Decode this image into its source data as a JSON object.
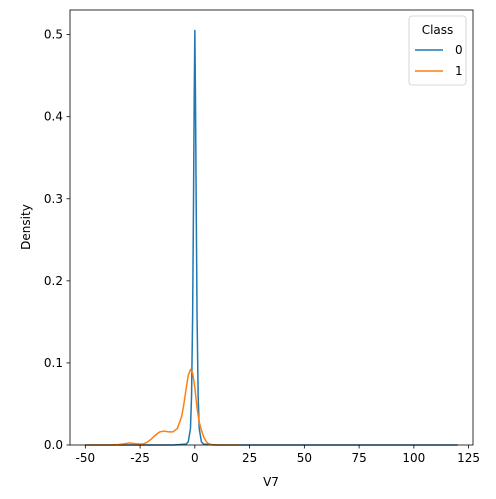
{
  "chart_data": {
    "type": "line",
    "xlabel": "V7",
    "ylabel": "Density",
    "xlim": [
      -57,
      127
    ],
    "ylim": [
      0,
      0.53
    ],
    "xticks": [
      -50,
      -25,
      0,
      25,
      50,
      75,
      100,
      125
    ],
    "yticks": [
      0.0,
      0.1,
      0.2,
      0.3,
      0.4,
      0.5
    ],
    "grid": false,
    "legend": {
      "title": "Class",
      "placement": "top-right"
    },
    "series": [
      {
        "name": "0",
        "color": "#1f77b4",
        "x": [
          -50,
          -10,
          -4,
          -3,
          -2,
          -1.5,
          -1,
          -0.6,
          -0.3,
          0,
          0.3,
          0.6,
          1,
          1.5,
          2,
          3,
          4,
          10,
          50,
          120
        ],
        "y": [
          0,
          0,
          0.001,
          0.004,
          0.02,
          0.06,
          0.16,
          0.3,
          0.42,
          0.505,
          0.42,
          0.3,
          0.16,
          0.06,
          0.02,
          0.004,
          0.001,
          0,
          0,
          0
        ]
      },
      {
        "name": "1",
        "color": "#ff7f0e",
        "x": [
          -50,
          -40,
          -35,
          -32,
          -30,
          -27,
          -24,
          -22,
          -20,
          -18,
          -16,
          -14,
          -12,
          -10,
          -8,
          -6,
          -5,
          -4,
          -3,
          -2,
          -1,
          0,
          1,
          2,
          3,
          4,
          5,
          6,
          8,
          10,
          20
        ],
        "y": [
          0,
          0,
          0.0005,
          0.0015,
          0.0025,
          0.0015,
          0.001,
          0.003,
          0.007,
          0.012,
          0.016,
          0.017,
          0.016,
          0.016,
          0.02,
          0.035,
          0.05,
          0.068,
          0.085,
          0.092,
          0.088,
          0.07,
          0.045,
          0.028,
          0.018,
          0.01,
          0.005,
          0.002,
          0,
          0,
          0
        ]
      }
    ]
  }
}
